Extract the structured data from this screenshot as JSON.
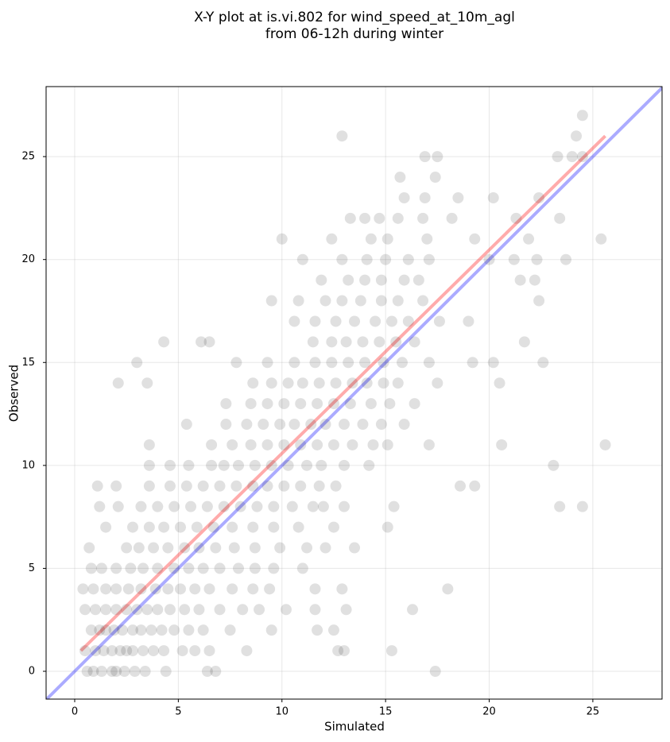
{
  "chart_data": {
    "type": "scatter",
    "title": [
      "X-Y plot at is.vi.802 for wind_speed_at_10m_agl",
      "from 06-12h during winter"
    ],
    "xlabel": "Simulated",
    "ylabel": "Observed",
    "xlim": [
      -1.38,
      28.34
    ],
    "ylim": [
      -1.35,
      28.4
    ],
    "xticks": [
      0,
      5,
      10,
      15,
      20,
      25
    ],
    "yticks": [
      0,
      5,
      10,
      15,
      20,
      25
    ],
    "grid": true,
    "point_color": "#000000",
    "points": [
      [
        0.6,
        0
      ],
      [
        0.9,
        0
      ],
      [
        1.3,
        0
      ],
      [
        1.8,
        0
      ],
      [
        2.0,
        0
      ],
      [
        2.4,
        0
      ],
      [
        2.9,
        0
      ],
      [
        3.4,
        0
      ],
      [
        4.4,
        0
      ],
      [
        6.4,
        0
      ],
      [
        6.8,
        0
      ],
      [
        17.4,
        0
      ],
      [
        0.5,
        1
      ],
      [
        1.0,
        1
      ],
      [
        1.4,
        1
      ],
      [
        1.8,
        1
      ],
      [
        2.2,
        1
      ],
      [
        2.5,
        1
      ],
      [
        2.8,
        1
      ],
      [
        3.3,
        1
      ],
      [
        3.8,
        1
      ],
      [
        4.3,
        1
      ],
      [
        5.2,
        1
      ],
      [
        5.8,
        1
      ],
      [
        6.5,
        1
      ],
      [
        8.3,
        1
      ],
      [
        12.7,
        1
      ],
      [
        13.0,
        1
      ],
      [
        15.3,
        1
      ],
      [
        0.8,
        2
      ],
      [
        1.2,
        2
      ],
      [
        1.5,
        2
      ],
      [
        1.9,
        2
      ],
      [
        2.3,
        2
      ],
      [
        2.8,
        2
      ],
      [
        3.2,
        2
      ],
      [
        3.7,
        2
      ],
      [
        4.2,
        2
      ],
      [
        4.8,
        2
      ],
      [
        5.5,
        2
      ],
      [
        6.2,
        2
      ],
      [
        7.5,
        2
      ],
      [
        9.5,
        2
      ],
      [
        11.7,
        2
      ],
      [
        12.5,
        2
      ],
      [
        0.5,
        3
      ],
      [
        1.0,
        3
      ],
      [
        1.5,
        3
      ],
      [
        2.0,
        3
      ],
      [
        2.5,
        3
      ],
      [
        3.0,
        3
      ],
      [
        3.5,
        3
      ],
      [
        4.0,
        3
      ],
      [
        4.6,
        3
      ],
      [
        5.3,
        3
      ],
      [
        6.0,
        3
      ],
      [
        7.0,
        3
      ],
      [
        8.1,
        3
      ],
      [
        8.9,
        3
      ],
      [
        10.2,
        3
      ],
      [
        11.6,
        3
      ],
      [
        13.1,
        3
      ],
      [
        16.3,
        3
      ],
      [
        0.4,
        4
      ],
      [
        0.9,
        4
      ],
      [
        1.5,
        4
      ],
      [
        2.0,
        4
      ],
      [
        2.6,
        4
      ],
      [
        3.2,
        4
      ],
      [
        3.9,
        4
      ],
      [
        4.5,
        4
      ],
      [
        5.1,
        4
      ],
      [
        5.8,
        4
      ],
      [
        6.5,
        4
      ],
      [
        7.6,
        4
      ],
      [
        8.6,
        4
      ],
      [
        9.4,
        4
      ],
      [
        11.6,
        4
      ],
      [
        12.9,
        4
      ],
      [
        18.0,
        4
      ],
      [
        0.8,
        5
      ],
      [
        1.3,
        5
      ],
      [
        2.0,
        5
      ],
      [
        2.7,
        5
      ],
      [
        3.3,
        5
      ],
      [
        4.0,
        5
      ],
      [
        4.8,
        5
      ],
      [
        5.5,
        5
      ],
      [
        6.2,
        5
      ],
      [
        7.0,
        5
      ],
      [
        7.9,
        5
      ],
      [
        8.7,
        5
      ],
      [
        9.6,
        5
      ],
      [
        11.0,
        5
      ],
      [
        0.7,
        6
      ],
      [
        2.5,
        6
      ],
      [
        3.1,
        6
      ],
      [
        3.8,
        6
      ],
      [
        4.5,
        6
      ],
      [
        5.3,
        6
      ],
      [
        6.0,
        6
      ],
      [
        6.8,
        6
      ],
      [
        7.7,
        6
      ],
      [
        8.7,
        6
      ],
      [
        9.9,
        6
      ],
      [
        11.2,
        6
      ],
      [
        12.1,
        6
      ],
      [
        13.5,
        6
      ],
      [
        1.5,
        7
      ],
      [
        2.8,
        7
      ],
      [
        3.6,
        7
      ],
      [
        4.3,
        7
      ],
      [
        5.1,
        7
      ],
      [
        5.9,
        7
      ],
      [
        6.7,
        7
      ],
      [
        7.6,
        7
      ],
      [
        8.6,
        7
      ],
      [
        9.6,
        7
      ],
      [
        10.8,
        7
      ],
      [
        12.5,
        7
      ],
      [
        15.1,
        7
      ],
      [
        1.2,
        8
      ],
      [
        2.1,
        8
      ],
      [
        3.2,
        8
      ],
      [
        4.0,
        8
      ],
      [
        4.8,
        8
      ],
      [
        5.6,
        8
      ],
      [
        6.4,
        8
      ],
      [
        7.2,
        8
      ],
      [
        8.0,
        8
      ],
      [
        8.8,
        8
      ],
      [
        9.6,
        8
      ],
      [
        10.5,
        8
      ],
      [
        11.5,
        8
      ],
      [
        12.0,
        8
      ],
      [
        13.0,
        8
      ],
      [
        15.4,
        8
      ],
      [
        23.4,
        8
      ],
      [
        24.5,
        8
      ],
      [
        1.1,
        9
      ],
      [
        2.0,
        9
      ],
      [
        3.6,
        9
      ],
      [
        4.6,
        9
      ],
      [
        5.4,
        9
      ],
      [
        6.2,
        9
      ],
      [
        7.0,
        9
      ],
      [
        7.8,
        9
      ],
      [
        8.6,
        9
      ],
      [
        9.3,
        9
      ],
      [
        10.1,
        9
      ],
      [
        10.9,
        9
      ],
      [
        11.8,
        9
      ],
      [
        12.6,
        9
      ],
      [
        18.6,
        9
      ],
      [
        19.3,
        9
      ],
      [
        3.6,
        10
      ],
      [
        4.6,
        10
      ],
      [
        5.5,
        10
      ],
      [
        6.6,
        10
      ],
      [
        7.2,
        10
      ],
      [
        7.9,
        10
      ],
      [
        8.7,
        10
      ],
      [
        9.5,
        10
      ],
      [
        10.3,
        10
      ],
      [
        11.2,
        10
      ],
      [
        11.9,
        10
      ],
      [
        13.0,
        10
      ],
      [
        14.2,
        10
      ],
      [
        23.1,
        10
      ],
      [
        3.6,
        11
      ],
      [
        6.6,
        11
      ],
      [
        7.6,
        11
      ],
      [
        8.5,
        11
      ],
      [
        9.3,
        11
      ],
      [
        10.1,
        11
      ],
      [
        10.9,
        11
      ],
      [
        11.7,
        11
      ],
      [
        12.5,
        11
      ],
      [
        13.4,
        11
      ],
      [
        14.4,
        11
      ],
      [
        15.1,
        11
      ],
      [
        17.1,
        11
      ],
      [
        20.6,
        11
      ],
      [
        25.6,
        11
      ],
      [
        5.4,
        12
      ],
      [
        7.3,
        12
      ],
      [
        8.3,
        12
      ],
      [
        9.1,
        12
      ],
      [
        9.9,
        12
      ],
      [
        10.6,
        12
      ],
      [
        11.4,
        12
      ],
      [
        12.1,
        12
      ],
      [
        13.0,
        12
      ],
      [
        13.9,
        12
      ],
      [
        14.8,
        12
      ],
      [
        15.9,
        12
      ],
      [
        7.3,
        13
      ],
      [
        8.5,
        13
      ],
      [
        9.3,
        13
      ],
      [
        10.1,
        13
      ],
      [
        10.9,
        13
      ],
      [
        11.7,
        13
      ],
      [
        12.5,
        13
      ],
      [
        13.3,
        13
      ],
      [
        14.3,
        13
      ],
      [
        15.2,
        13
      ],
      [
        16.4,
        13
      ],
      [
        2.1,
        14
      ],
      [
        3.5,
        14
      ],
      [
        8.6,
        14
      ],
      [
        9.5,
        14
      ],
      [
        10.3,
        14
      ],
      [
        11.0,
        14
      ],
      [
        11.8,
        14
      ],
      [
        12.6,
        14
      ],
      [
        13.4,
        14
      ],
      [
        14.1,
        14
      ],
      [
        14.9,
        14
      ],
      [
        15.6,
        14
      ],
      [
        17.5,
        14
      ],
      [
        20.5,
        14
      ],
      [
        3.0,
        15
      ],
      [
        7.8,
        15
      ],
      [
        9.3,
        15
      ],
      [
        10.6,
        15
      ],
      [
        11.6,
        15
      ],
      [
        12.4,
        15
      ],
      [
        13.2,
        15
      ],
      [
        14.0,
        15
      ],
      [
        14.9,
        15
      ],
      [
        15.8,
        15
      ],
      [
        17.1,
        15
      ],
      [
        19.2,
        15
      ],
      [
        20.2,
        15
      ],
      [
        22.6,
        15
      ],
      [
        4.3,
        16
      ],
      [
        6.1,
        16
      ],
      [
        6.5,
        16
      ],
      [
        11.5,
        16
      ],
      [
        12.4,
        16
      ],
      [
        13.1,
        16
      ],
      [
        13.9,
        16
      ],
      [
        14.7,
        16
      ],
      [
        15.5,
        16
      ],
      [
        16.4,
        16
      ],
      [
        21.7,
        16
      ],
      [
        10.6,
        17
      ],
      [
        11.6,
        17
      ],
      [
        12.6,
        17
      ],
      [
        13.5,
        17
      ],
      [
        14.5,
        17
      ],
      [
        15.3,
        17
      ],
      [
        16.1,
        17
      ],
      [
        17.6,
        17
      ],
      [
        19.0,
        17
      ],
      [
        9.5,
        18
      ],
      [
        10.8,
        18
      ],
      [
        12.1,
        18
      ],
      [
        12.9,
        18
      ],
      [
        13.8,
        18
      ],
      [
        14.8,
        18
      ],
      [
        15.6,
        18
      ],
      [
        16.8,
        18
      ],
      [
        22.4,
        18
      ],
      [
        11.9,
        19
      ],
      [
        13.2,
        19
      ],
      [
        14.0,
        19
      ],
      [
        14.8,
        19
      ],
      [
        15.9,
        19
      ],
      [
        16.6,
        19
      ],
      [
        21.5,
        19
      ],
      [
        22.2,
        19
      ],
      [
        11.0,
        20
      ],
      [
        12.9,
        20
      ],
      [
        14.1,
        20
      ],
      [
        15.0,
        20
      ],
      [
        16.1,
        20
      ],
      [
        17.1,
        20
      ],
      [
        20.0,
        20
      ],
      [
        21.2,
        20
      ],
      [
        22.3,
        20
      ],
      [
        23.7,
        20
      ],
      [
        10.0,
        21
      ],
      [
        12.4,
        21
      ],
      [
        14.3,
        21
      ],
      [
        15.1,
        21
      ],
      [
        17.0,
        21
      ],
      [
        19.3,
        21
      ],
      [
        21.9,
        21
      ],
      [
        25.4,
        21
      ],
      [
        13.3,
        22
      ],
      [
        14.0,
        22
      ],
      [
        14.7,
        22
      ],
      [
        15.6,
        22
      ],
      [
        16.8,
        22
      ],
      [
        18.2,
        22
      ],
      [
        21.3,
        22
      ],
      [
        23.4,
        22
      ],
      [
        15.9,
        23
      ],
      [
        16.9,
        23
      ],
      [
        18.5,
        23
      ],
      [
        20.2,
        23
      ],
      [
        22.4,
        23
      ],
      [
        15.7,
        24
      ],
      [
        17.4,
        24
      ],
      [
        16.9,
        25
      ],
      [
        17.5,
        25
      ],
      [
        23.3,
        25
      ],
      [
        24.0,
        25
      ],
      [
        24.5,
        25
      ],
      [
        12.9,
        26
      ],
      [
        24.2,
        26
      ],
      [
        24.5,
        27
      ]
    ],
    "lines": [
      {
        "color": "#ff0000",
        "x": [
          0.3,
          25.6
        ],
        "y": [
          1.0,
          26.0
        ]
      },
      {
        "color": "#0000ff",
        "x": [
          -1.38,
          28.34
        ],
        "y": [
          -1.38,
          28.34
        ]
      }
    ]
  }
}
